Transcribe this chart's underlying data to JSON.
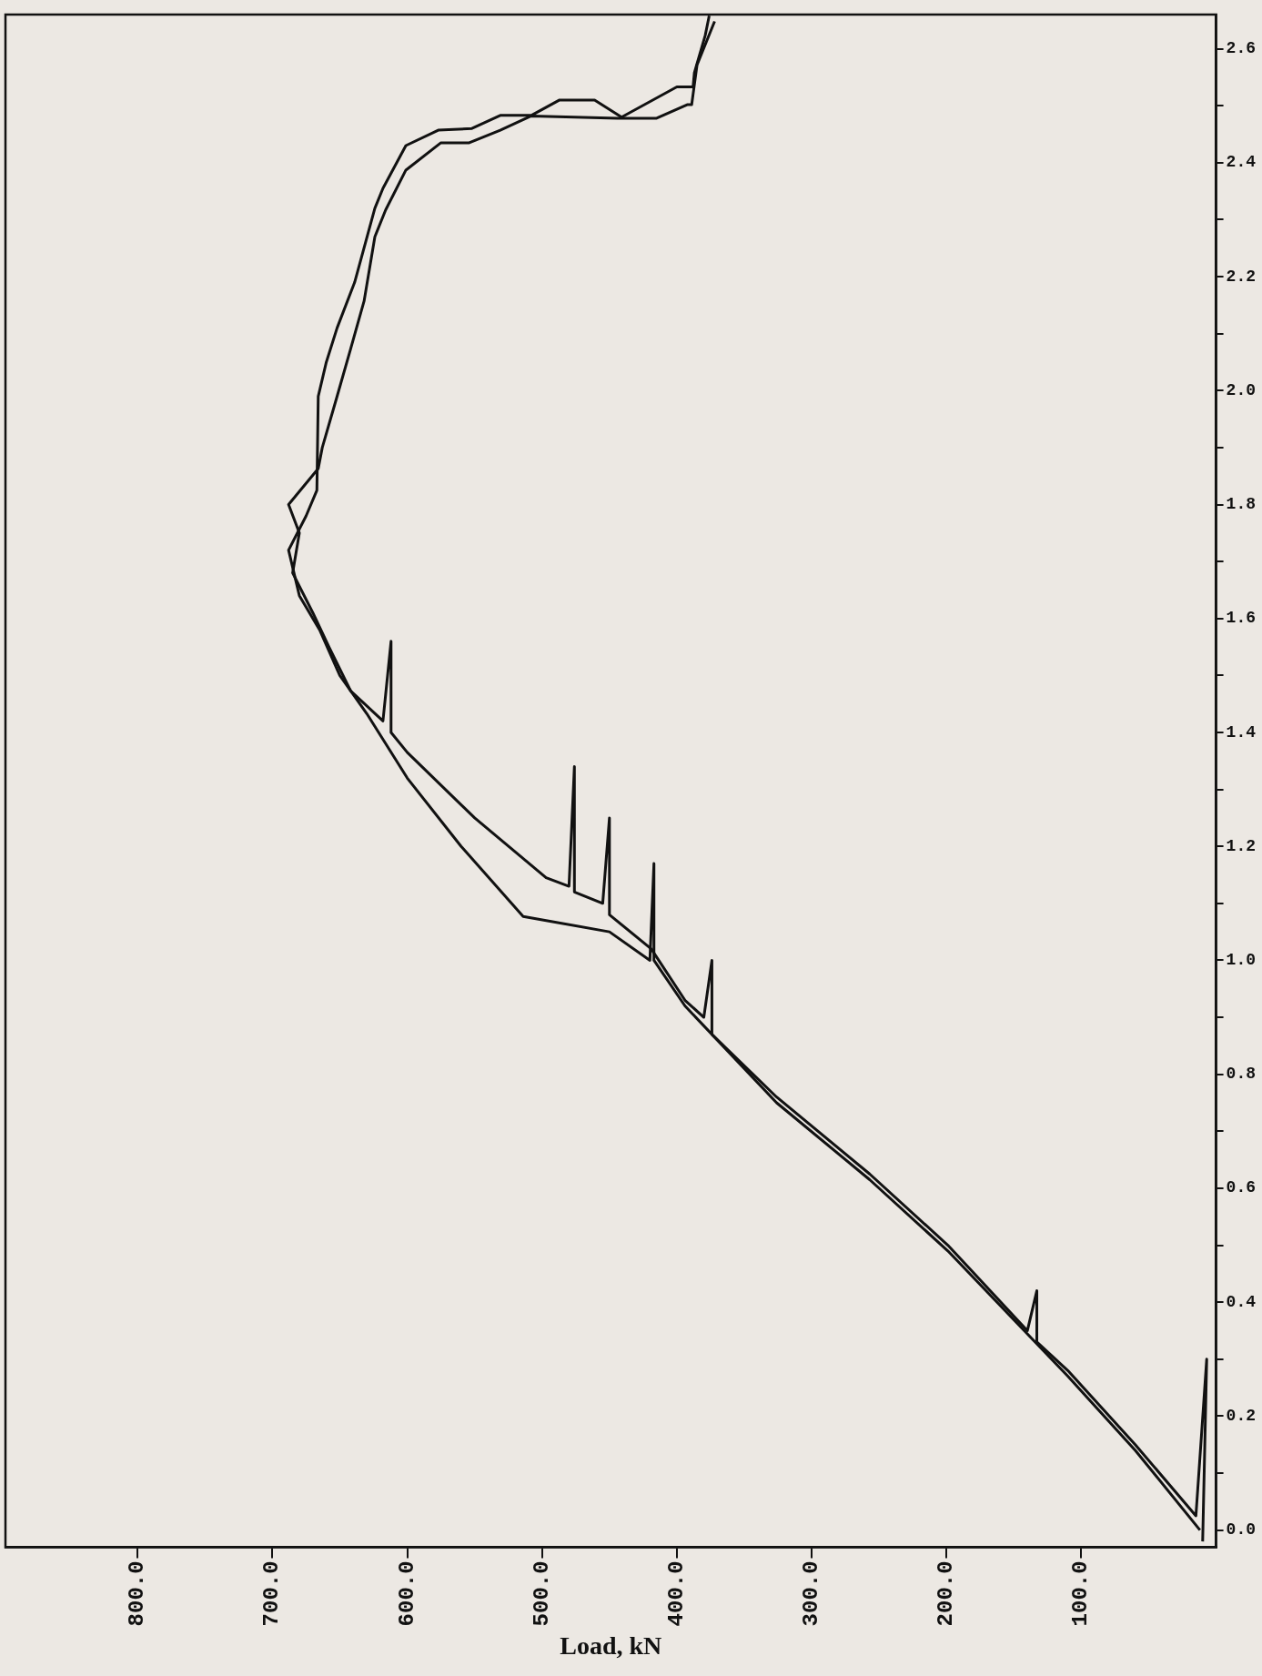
{
  "chart_data": {
    "type": "line",
    "xlabel": "Load, kN",
    "marker": "none",
    "xlim": [
      898,
      0
    ],
    "ylim": [
      -0.03,
      2.66
    ],
    "xticks": [
      {
        "value": 100,
        "label": "100.0"
      },
      {
        "value": 200,
        "label": "200.0"
      },
      {
        "value": 300,
        "label": "300.0"
      },
      {
        "value": 400,
        "label": "400.0"
      },
      {
        "value": 500,
        "label": "500.0"
      },
      {
        "value": 600,
        "label": "600.0"
      },
      {
        "value": 700,
        "label": "700.0"
      },
      {
        "value": 800,
        "label": "800.0"
      }
    ],
    "yticks": [
      {
        "value": 0,
        "label": "0.0"
      },
      {
        "value": 0.1,
        "label": null
      },
      {
        "value": 0.2,
        "label": "0.2"
      },
      {
        "value": 0.3,
        "label": null
      },
      {
        "value": 0.4,
        "label": "0.4"
      },
      {
        "value": 0.5,
        "label": null
      },
      {
        "value": 0.6,
        "label": "0.6"
      },
      {
        "value": 0.7,
        "label": null
      },
      {
        "value": 0.8,
        "label": "0.8"
      },
      {
        "value": 0.9,
        "label": null
      },
      {
        "value": 1,
        "label": "1.0"
      },
      {
        "value": 1.1,
        "label": null
      },
      {
        "value": 1.2,
        "label": "1.2"
      },
      {
        "value": 1.3,
        "label": null
      },
      {
        "value": 1.4,
        "label": "1.4"
      },
      {
        "value": 1.5,
        "label": null
      },
      {
        "value": 1.6,
        "label": "1.6"
      },
      {
        "value": 1.7,
        "label": null
      },
      {
        "value": 1.8,
        "label": "1.8"
      },
      {
        "value": 1.9,
        "label": null
      },
      {
        "value": 2,
        "label": "2.0"
      },
      {
        "value": 2.1,
        "label": null
      },
      {
        "value": 2.2,
        "label": "2.2"
      },
      {
        "value": 2.3,
        "label": null
      },
      {
        "value": 2.4,
        "label": "2.4"
      },
      {
        "value": 2.5,
        "label": null
      },
      {
        "value": 2.6,
        "label": "2.6"
      }
    ],
    "series": [
      {
        "color": "#111111",
        "x": [
          10,
          7,
          15,
          60,
          110,
          133,
          133,
          140,
          199,
          257,
          326,
          374,
          374,
          380,
          394,
          419,
          450,
          450,
          455,
          476,
          476,
          480,
          497,
          550,
          600,
          612,
          612,
          618,
          642,
          658,
          670,
          685,
          680,
          688,
          666,
          663,
          652,
          642,
          632,
          624,
          616,
          601,
          575,
          554,
          531,
          508,
          444,
          415,
          392,
          389,
          385,
          372
        ],
        "values": [
          -0.02,
          0.3,
          0.025,
          0.15,
          0.28,
          0.33,
          0.42,
          0.35,
          0.5,
          0.625,
          0.76,
          0.87,
          1.0,
          0.9,
          0.93,
          1.02,
          1.08,
          1.25,
          1.1,
          1.12,
          1.34,
          1.13,
          1.145,
          1.25,
          1.365,
          1.4,
          1.56,
          1.42,
          1.473,
          1.55,
          1.61,
          1.68,
          1.75,
          1.8,
          1.863,
          1.9,
          1.99,
          2.073,
          2.157,
          2.27,
          2.317,
          2.387,
          2.435,
          2.435,
          2.457,
          2.482,
          2.478,
          2.478,
          2.502,
          2.502,
          2.572,
          2.648
        ]
      },
      {
        "color": "#111111",
        "x": [
          12,
          60,
          110,
          199,
          257,
          326,
          394,
          417,
          417,
          420,
          450,
          514,
          560,
          600,
          630,
          650,
          665,
          680,
          688,
          675,
          667,
          666,
          660,
          652,
          639,
          624,
          618,
          601,
          577,
          552,
          531,
          508,
          487,
          461,
          441,
          400,
          388,
          387,
          379,
          376
        ],
        "values": [
          0.0,
          0.14,
          0.27,
          0.49,
          0.615,
          0.75,
          0.92,
          1.0,
          1.17,
          1.0,
          1.05,
          1.077,
          1.2,
          1.32,
          1.433,
          1.5,
          1.58,
          1.64,
          1.72,
          1.78,
          1.825,
          1.99,
          2.05,
          2.11,
          2.19,
          2.32,
          2.355,
          2.43,
          2.457,
          2.46,
          2.483,
          2.483,
          2.51,
          2.51,
          2.48,
          2.533,
          2.533,
          2.558,
          2.623,
          2.658
        ]
      }
    ]
  }
}
